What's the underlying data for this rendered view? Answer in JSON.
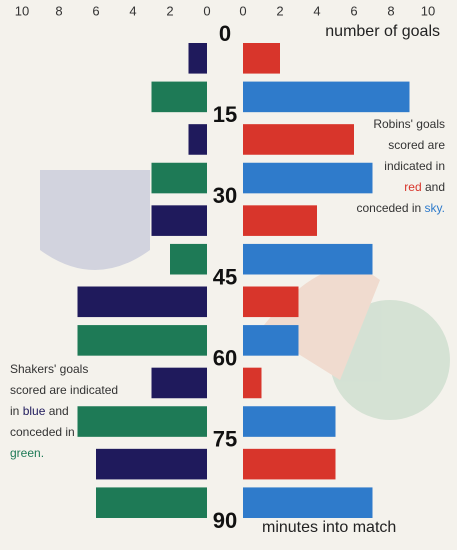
{
  "chart_data": {
    "type": "butterfly",
    "time_marks": [
      0,
      15,
      30,
      45,
      60,
      75,
      90
    ],
    "right_title": "number of goals",
    "bottom_title": "minutes into match",
    "left": {
      "xlim": [
        0,
        10
      ],
      "xticks": [
        10,
        8,
        6,
        4,
        2,
        0
      ],
      "series": [
        {
          "color": "#1f1a5c",
          "values": [
            1,
            1,
            3,
            7,
            3,
            6
          ]
        },
        {
          "color": "#1e7a56",
          "values": [
            3,
            3,
            2,
            7,
            7,
            6
          ]
        }
      ]
    },
    "right": {
      "xlim": [
        0,
        10
      ],
      "xticks": [
        0,
        2,
        4,
        6,
        8,
        10
      ],
      "series": [
        {
          "color": "#d8352b",
          "values": [
            2,
            6,
            4,
            3,
            1,
            5
          ]
        },
        {
          "color": "#2f7bcb",
          "values": [
            9,
            7,
            7,
            3,
            5,
            7
          ]
        }
      ]
    },
    "annotations": [
      {
        "side": "right",
        "lines": [
          [
            {
              "text": "Robins' goals"
            }
          ],
          [
            {
              "text": "scored are"
            }
          ],
          [
            {
              "text": "indicated in"
            }
          ],
          [
            {
              "text": "red",
              "color": "#d8352b"
            },
            {
              "text": " and"
            }
          ],
          [
            {
              "text": "conceded in "
            },
            {
              "text": "sky.",
              "color": "#2f7bcb"
            }
          ]
        ]
      },
      {
        "side": "left",
        "lines": [
          [
            {
              "text": "Shakers' goals"
            }
          ],
          [
            {
              "text": "scored are indicated"
            }
          ],
          [
            {
              "text": "in "
            },
            {
              "text": "blue",
              "color": "#1f1a5c"
            },
            {
              "text": " and"
            }
          ],
          [
            {
              "text": "conceded in"
            }
          ],
          [
            {
              "text": "green.",
              "color": "#1e7a56"
            }
          ]
        ]
      }
    ]
  }
}
